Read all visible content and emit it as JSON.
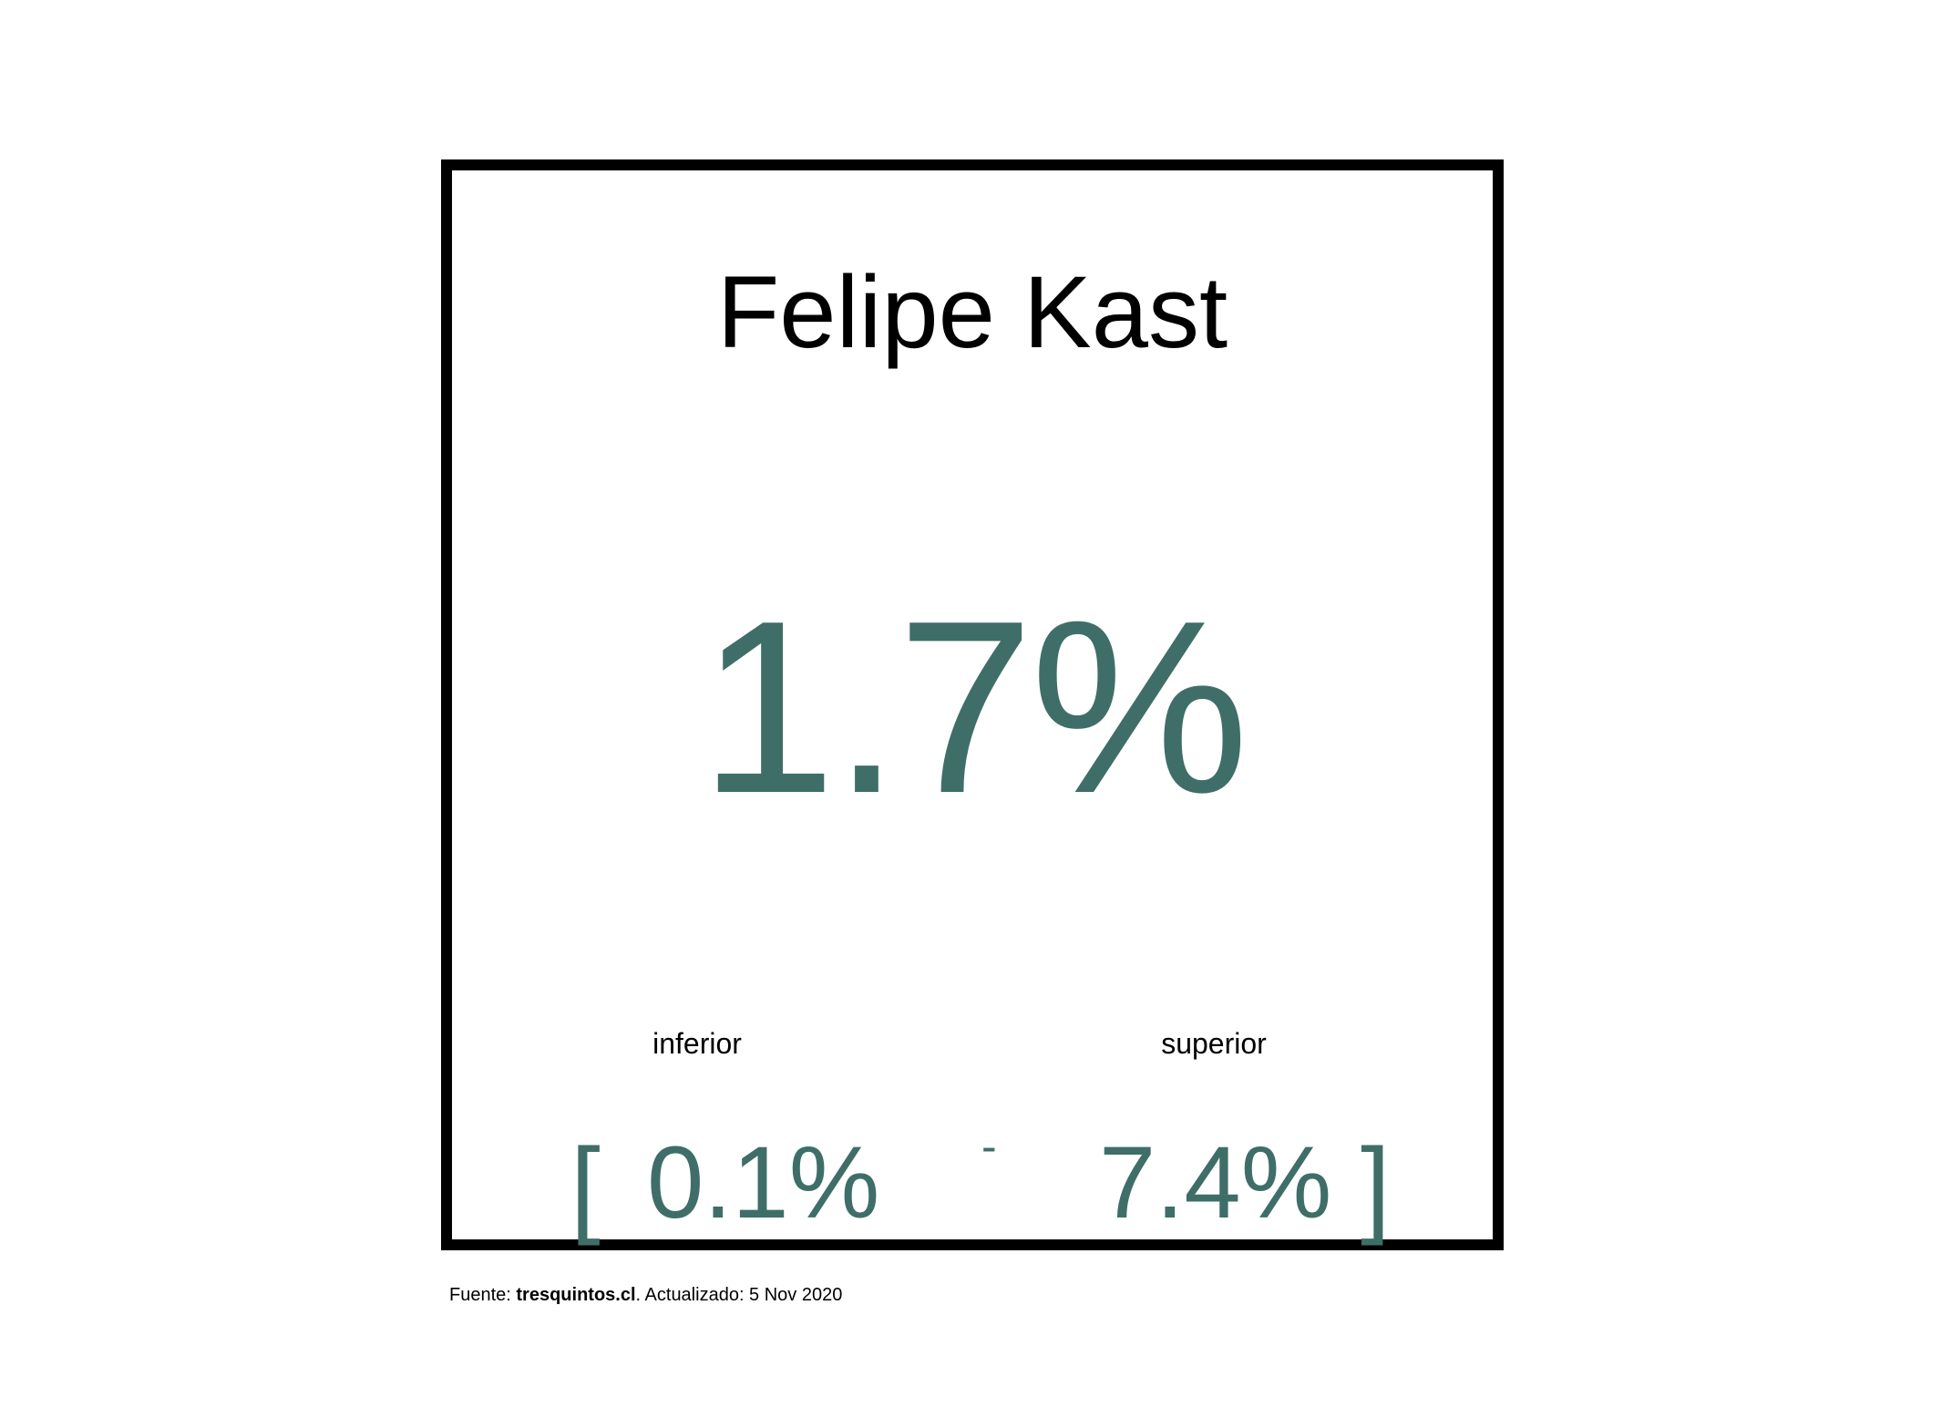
{
  "card": {
    "name": "Felipe Kast",
    "value": "1.7%",
    "lower_label": "inferior",
    "upper_label": "superior",
    "bracket_open": "[",
    "lower_value": "0.1%",
    "separator": "-",
    "upper_value": "7.4%",
    "bracket_close": "]"
  },
  "footer": {
    "source_prefix": "Fuente: ",
    "source_name": "tresquintos.cl",
    "updated_text": ". Actualizado: 5 Nov 2020"
  },
  "colors": {
    "accent": "#3F6E68",
    "border": "#000000",
    "text": "#000000"
  }
}
